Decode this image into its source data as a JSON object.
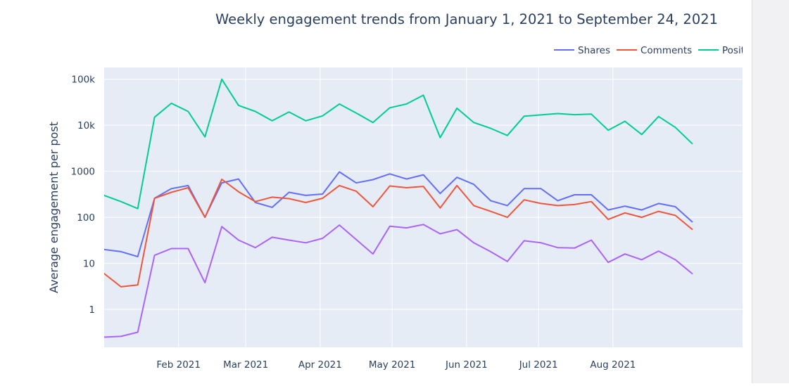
{
  "chart_data": {
    "type": "line",
    "title": "Weekly engagement trends from January 1, 2021 to September 24, 2021",
    "xlabel": "",
    "ylabel": "Average engagement per post",
    "y_scale": "log",
    "ylim": [
      0.15,
      180000
    ],
    "xlim": [
      "2021-01-01",
      "2021-09-24"
    ],
    "x_ticks": [
      {
        "date": "2021-02-01",
        "label": "Feb 2021"
      },
      {
        "date": "2021-03-01",
        "label": "Mar 2021"
      },
      {
        "date": "2021-04-01",
        "label": "Apr 2021"
      },
      {
        "date": "2021-05-01",
        "label": "May 2021"
      },
      {
        "date": "2021-06-01",
        "label": "Jun 2021"
      },
      {
        "date": "2021-07-01",
        "label": "Jul 2021"
      },
      {
        "date": "2021-08-01",
        "label": "Aug 2021"
      }
    ],
    "y_ticks": [
      {
        "value": 1,
        "label": "1"
      },
      {
        "value": 10,
        "label": "10"
      },
      {
        "value": 100,
        "label": "100"
      },
      {
        "value": 1000,
        "label": "1000"
      },
      {
        "value": 10000,
        "label": "10k"
      },
      {
        "value": 100000,
        "label": "100k"
      }
    ],
    "grid": true,
    "legend_position": "top-right",
    "x": [
      "2021-01-01",
      "2021-01-08",
      "2021-01-15",
      "2021-01-22",
      "2021-01-29",
      "2021-02-05",
      "2021-02-12",
      "2021-02-19",
      "2021-02-26",
      "2021-03-05",
      "2021-03-12",
      "2021-03-19",
      "2021-03-26",
      "2021-04-02",
      "2021-04-09",
      "2021-04-16",
      "2021-04-23",
      "2021-04-30",
      "2021-05-07",
      "2021-05-14",
      "2021-05-21",
      "2021-05-28",
      "2021-06-04",
      "2021-06-11",
      "2021-06-18",
      "2021-06-25",
      "2021-07-02",
      "2021-07-09",
      "2021-07-16",
      "2021-07-23",
      "2021-07-30",
      "2021-08-06",
      "2021-08-13",
      "2021-08-20",
      "2021-08-27",
      "2021-09-03"
    ],
    "series": [
      {
        "name": "Shares",
        "color": "#636efa",
        "values": [
          20,
          18,
          14,
          260,
          420,
          490,
          100,
          560,
          680,
          210,
          165,
          350,
          300,
          320,
          970,
          560,
          660,
          880,
          680,
          840,
          330,
          740,
          520,
          230,
          180,
          420,
          420,
          230,
          310,
          310,
          145,
          175,
          145,
          200,
          170,
          80
        ]
      },
      {
        "name": "Comments",
        "color": "#ef553b",
        "values": [
          6,
          3.1,
          3.4,
          260,
          350,
          440,
          100,
          670,
          360,
          220,
          275,
          255,
          210,
          260,
          490,
          370,
          170,
          480,
          440,
          470,
          160,
          490,
          180,
          135,
          100,
          240,
          200,
          180,
          190,
          220,
          90,
          125,
          100,
          135,
          110,
          55
        ]
      },
      {
        "name": "Positive reactions",
        "color": "#00cc96",
        "values": [
          300,
          220,
          155,
          15000,
          30000,
          20000,
          5600,
          100000,
          27000,
          20000,
          12500,
          19500,
          12500,
          16000,
          29000,
          18500,
          11500,
          24000,
          29000,
          45000,
          5400,
          23500,
          11500,
          8600,
          6000,
          15800,
          16800,
          18000,
          17000,
          17500,
          7800,
          12200,
          6300,
          15500,
          9000,
          4000
        ]
      },
      {
        "name": "",
        "color": "#ab63fa",
        "values": [
          0.25,
          0.26,
          0.32,
          15,
          21,
          21,
          3.8,
          63,
          32,
          22,
          37,
          32,
          28,
          35,
          68,
          33,
          16,
          64,
          59,
          70,
          44,
          54,
          28,
          18,
          11,
          31,
          28,
          22,
          21.5,
          32,
          10.5,
          16,
          12,
          18.5,
          12,
          6
        ]
      }
    ]
  }
}
